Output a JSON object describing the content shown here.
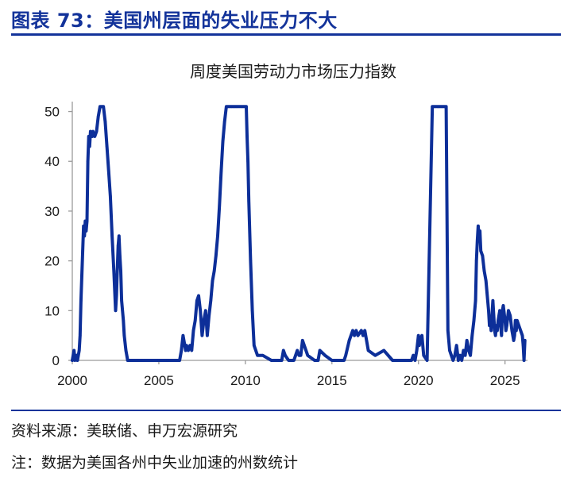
{
  "figure": {
    "title": "图表 73：美国州层面的失业压力不大",
    "source": "资料来源：美联储、申万宏源研究",
    "note": "注：数据为美国各州中失业加速的州数统计"
  },
  "colors": {
    "brand": "#13339a",
    "line": "#0d2f99",
    "axis": "#9a9a9a"
  },
  "chart_data": {
    "type": "line",
    "title": "周度美国劳动力市场压力指数",
    "xlabel": "",
    "ylabel": "",
    "xlim": [
      2000,
      2026.3
    ],
    "ylim": [
      0,
      52
    ],
    "x_ticks": [
      2000,
      2005,
      2010,
      2015,
      2020,
      2025
    ],
    "y_ticks": [
      0,
      10,
      20,
      30,
      40,
      50
    ],
    "grid": false,
    "series": [
      {
        "name": "",
        "x": [
          2000.0,
          2000.1,
          2000.15,
          2000.25,
          2000.3,
          2000.4,
          2000.45,
          2000.5,
          2000.55,
          2000.6,
          2000.65,
          2000.7,
          2000.75,
          2000.8,
          2000.85,
          2000.9,
          2000.95,
          2001.0,
          2001.05,
          2001.1,
          2001.15,
          2001.2,
          2001.3,
          2001.4,
          2001.5,
          2001.6,
          2001.7,
          2001.8,
          2001.9,
          2002.0,
          2002.1,
          2002.2,
          2002.3,
          2002.4,
          2002.5,
          2002.55,
          2002.6,
          2002.65,
          2002.7,
          2002.75,
          2002.8,
          2002.85,
          2002.9,
          2002.95,
          2003.0,
          2003.1,
          2003.2,
          2003.3,
          2003.35,
          2003.45,
          2003.5,
          2003.55,
          2003.6,
          2003.65,
          2003.7,
          2003.75,
          2003.8,
          2003.85,
          2003.9,
          2004.0,
          2004.1,
          2004.5,
          2005.0,
          2005.5,
          2006.0,
          2006.2,
          2006.3,
          2006.4,
          2006.5,
          2006.55,
          2006.6,
          2006.7,
          2006.8,
          2006.9,
          2007.0,
          2007.1,
          2007.2,
          2007.3,
          2007.4,
          2007.5,
          2007.6,
          2007.7,
          2007.8,
          2007.9,
          2008.0,
          2008.1,
          2008.2,
          2008.3,
          2008.4,
          2008.5,
          2008.6,
          2008.7,
          2008.8,
          2008.9,
          2009.0,
          2009.1,
          2009.2,
          2009.3,
          2009.4,
          2009.5,
          2009.8,
          2010.0,
          2010.05,
          2010.1,
          2010.15,
          2010.2,
          2010.3,
          2010.4,
          2010.5,
          2010.7,
          2011.0,
          2011.5,
          2011.9,
          2012.0,
          2012.1,
          2012.2,
          2012.3,
          2012.5,
          2012.7,
          2012.8,
          2012.9,
          2013.0,
          2013.1,
          2013.2,
          2013.3,
          2013.6,
          2014.0,
          2014.1,
          2014.2,
          2014.3,
          2014.6,
          2015.0,
          2015.2,
          2015.3,
          2015.5,
          2015.7,
          2015.8,
          2016.0,
          2016.2,
          2016.3,
          2016.4,
          2016.5,
          2016.7,
          2016.8,
          2016.9,
          2017.0,
          2017.1,
          2017.5,
          2018.0,
          2018.5,
          2019.0,
          2019.2,
          2019.3,
          2019.5,
          2019.6,
          2019.7,
          2019.8,
          2019.9,
          2020.0,
          2020.05,
          2020.1,
          2020.2,
          2020.25,
          2020.3,
          2020.5,
          2020.8,
          2021.0,
          2021.1,
          2021.15,
          2021.2,
          2021.3,
          2021.4,
          2021.5,
          2021.6,
          2021.7,
          2021.8,
          2021.9,
          2022.0,
          2022.1,
          2022.2,
          2022.3,
          2022.4,
          2022.5,
          2022.6,
          2022.7,
          2022.8,
          2022.9,
          2023.0,
          2023.1,
          2023.2,
          2023.3,
          2023.35,
          2023.4,
          2023.45,
          2023.5,
          2023.55,
          2023.6,
          2023.7,
          2023.8,
          2023.9,
          2024.0,
          2024.05,
          2024.1,
          2024.15,
          2024.2,
          2024.25,
          2024.3,
          2024.35,
          2024.4,
          2024.45,
          2024.5,
          2024.55,
          2024.6,
          2024.7,
          2024.75,
          2024.8,
          2024.85,
          2024.9,
          2025.0,
          2025.05,
          2025.1,
          2025.2,
          2025.3,
          2025.4,
          2025.5,
          2025.55,
          2025.6,
          2025.65,
          2025.7,
          2025.8,
          2025.9,
          2026.0,
          2026.05,
          2026.1,
          2026.15
        ],
        "values": [
          0,
          2,
          0,
          1,
          0,
          2,
          5,
          12,
          17,
          22,
          27,
          25,
          28,
          26,
          28,
          40,
          45,
          43,
          46,
          45,
          45,
          46,
          45,
          46,
          49,
          51,
          51,
          51,
          48,
          43,
          38,
          33,
          25,
          18,
          10,
          13,
          18,
          23,
          25,
          21,
          18,
          12,
          10,
          8,
          5,
          2,
          0,
          0,
          0,
          0,
          0,
          0,
          0,
          0,
          0,
          0,
          0,
          0,
          0,
          0,
          0,
          0,
          0,
          0,
          0,
          0,
          2,
          5,
          3,
          2,
          3,
          2,
          3,
          2,
          6,
          8,
          12,
          13,
          10,
          5,
          8,
          10,
          5,
          9,
          12,
          16,
          18,
          21,
          25,
          31,
          38,
          44,
          48,
          51,
          51,
          51,
          51,
          51,
          51,
          51,
          51,
          51,
          51,
          45,
          40,
          32,
          20,
          10,
          3,
          1,
          1,
          0,
          0,
          0,
          0,
          2,
          1,
          0,
          0,
          0,
          1,
          2,
          1,
          1,
          4,
          1,
          0,
          0,
          0,
          2,
          1,
          0,
          0,
          0,
          0,
          0,
          1,
          4,
          6,
          5,
          6,
          5,
          6,
          5,
          6,
          4,
          2,
          1,
          2,
          0,
          0,
          0,
          0,
          0,
          0,
          1,
          0,
          2,
          5,
          3,
          4,
          5,
          3,
          1,
          0,
          51,
          51,
          51,
          51,
          51,
          51,
          51,
          51,
          51,
          6,
          2,
          1,
          0,
          1,
          3,
          0,
          1,
          0,
          2,
          1,
          4,
          2,
          1,
          5,
          8,
          12,
          20,
          24,
          27,
          25,
          26,
          22,
          21,
          18,
          16,
          12,
          10,
          7,
          8,
          6,
          9,
          12,
          9,
          6,
          5,
          7,
          6,
          8,
          10,
          7,
          5,
          10,
          11,
          8,
          6,
          7,
          10,
          9,
          6,
          4,
          5,
          8,
          6,
          8,
          7,
          6,
          5,
          3,
          0,
          4
        ]
      }
    ]
  }
}
